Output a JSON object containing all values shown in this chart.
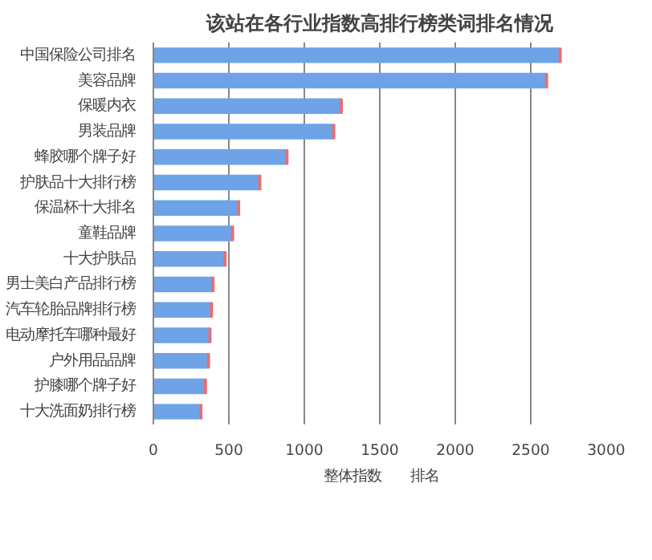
{
  "chart_data": {
    "type": "bar",
    "orientation": "horizontal",
    "stacked": true,
    "title": "该站在各行业指数高排行榜类词排名情况",
    "categories": [
      "中国保险公司排名",
      "美容品牌",
      "保暖内衣",
      "男装品牌",
      "蜂胶哪个牌子好",
      "护肤品十大排行榜",
      "保温杯十大排名",
      "童鞋品牌",
      "十大护肤品",
      "男士美白产品排行榜",
      "汽车轮胎品牌排行榜",
      "电动摩托车哪种最好",
      "户外用品品牌",
      "护膝哪个牌子好",
      "十大洗面奶排行榜"
    ],
    "series": [
      {
        "name": "整体指数",
        "color": "#6fa3e8",
        "values": [
          2690,
          2600,
          1240,
          1190,
          880,
          700,
          560,
          520,
          470,
          390,
          380,
          370,
          360,
          340,
          310
        ]
      },
      {
        "name": "排名",
        "color": "#e86f6f",
        "values": [
          10,
          10,
          10,
          10,
          10,
          10,
          10,
          10,
          10,
          10,
          10,
          10,
          10,
          10,
          10
        ]
      }
    ],
    "xlim": [
      0,
      3000
    ],
    "xticks": [
      0,
      500,
      1000,
      1500,
      2000,
      2500,
      3000
    ],
    "grid": "x",
    "legend": "bottom"
  }
}
